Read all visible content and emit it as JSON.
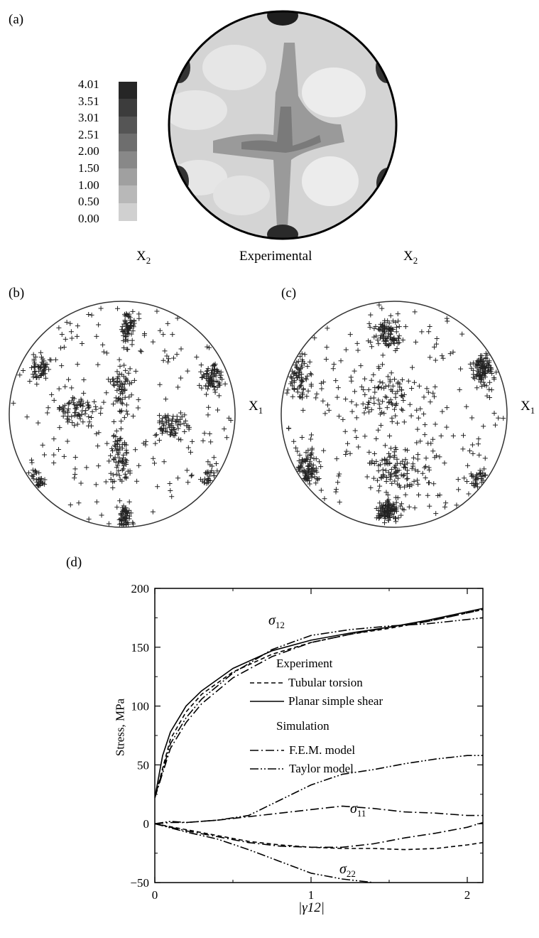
{
  "panels": {
    "a": {
      "label": "(a)",
      "scale_ticks": [
        "4.01",
        "3.51",
        "3.01",
        "2.51",
        "2.00",
        "1.50",
        "1.00",
        "0.50",
        "0.00"
      ],
      "scale_colors": [
        "#262626",
        "#3c3c3c",
        "#555555",
        "#6e6e6e",
        "#888888",
        "#a0a0a0",
        "#b8b8b8",
        "#d0d0d0",
        "#e8e8e8"
      ],
      "caption": "Experimental",
      "left_axis": "X",
      "right_axis": "X",
      "axis_sub": "2"
    },
    "b": {
      "label": "(b)",
      "axis": "X",
      "axis_sub": "1"
    },
    "c": {
      "label": "(c)",
      "axis": "X",
      "axis_sub": "1"
    },
    "d": {
      "label": "(d)"
    }
  },
  "chart_data": {
    "type": "line",
    "ylabel": "Stress, MPa",
    "xlabel": "|γ12|",
    "xlim": [
      0,
      2.1
    ],
    "ylim": [
      -50,
      200
    ],
    "x_ticks": [
      "0",
      "1",
      "2"
    ],
    "y_ticks": [
      "200",
      "150",
      "100",
      "50",
      "0",
      "−50"
    ],
    "legend": {
      "experiment_heading": "Experiment",
      "simulation_heading": "Simulation",
      "entries": [
        {
          "label": "Tubular torsion",
          "style": "dashed"
        },
        {
          "label": "Planar simple shear",
          "style": "solid"
        },
        {
          "label": "F.E.M. model",
          "style": "dashdot"
        },
        {
          "label": "Taylor model",
          "style": "dashdotdot"
        }
      ]
    },
    "annotations": [
      {
        "symbol": "σ",
        "sub": "12"
      },
      {
        "symbol": "σ",
        "sub": "11"
      },
      {
        "symbol": "σ",
        "sub": "22"
      }
    ],
    "series": [
      {
        "component": "σ12",
        "style": "solid",
        "x": [
          0,
          0.05,
          0.1,
          0.2,
          0.3,
          0.5,
          0.75,
          1.0,
          1.25,
          1.5,
          1.75,
          2.1
        ],
        "y": [
          22,
          58,
          78,
          100,
          113,
          132,
          147,
          156,
          162,
          167,
          173,
          183
        ]
      },
      {
        "component": "σ12",
        "style": "dashed",
        "x": [
          0,
          0.1,
          0.2,
          0.3,
          0.5,
          0.75,
          1.0,
          1.25,
          1.5,
          1.75,
          2.1
        ],
        "y": [
          22,
          72,
          95,
          110,
          129,
          144,
          154,
          161,
          166,
          172,
          182
        ]
      },
      {
        "component": "σ12",
        "style": "dashdot",
        "x": [
          0,
          0.1,
          0.2,
          0.3,
          0.5,
          0.75,
          1.0,
          1.25,
          1.5,
          1.75,
          2.1
        ],
        "y": [
          22,
          64,
          86,
          102,
          124,
          142,
          154,
          161,
          167,
          172,
          182
        ]
      },
      {
        "component": "σ12",
        "style": "dashdotdot",
        "x": [
          0,
          0.1,
          0.2,
          0.3,
          0.5,
          0.75,
          1.0,
          1.25,
          1.5,
          1.75,
          2.1
        ],
        "y": [
          22,
          68,
          90,
          106,
          128,
          148,
          160,
          165,
          168,
          170,
          175
        ]
      },
      {
        "component": "σ11",
        "style": "dashdot",
        "x": [
          0,
          0.1,
          0.2,
          0.4,
          0.6,
          0.8,
          1.0,
          1.2,
          1.4,
          1.6,
          1.8,
          2.0,
          2.1
        ],
        "y": [
          0,
          1,
          1,
          3,
          6,
          9,
          12,
          15,
          13,
          10,
          9,
          7,
          7
        ]
      },
      {
        "component": "σ11",
        "style": "dashdotdot",
        "x": [
          0,
          0.1,
          0.2,
          0.4,
          0.6,
          0.8,
          1.0,
          1.2,
          1.4,
          1.6,
          1.8,
          2.0,
          2.1
        ],
        "y": [
          0,
          2,
          1,
          3,
          7,
          20,
          33,
          42,
          46,
          51,
          55,
          58,
          58
        ]
      },
      {
        "component": "σ22",
        "style": "dashed",
        "x": [
          0,
          0.2,
          0.4,
          0.6,
          0.8,
          1.0,
          1.2,
          1.4,
          1.6,
          1.8,
          2.0,
          2.1
        ],
        "y": [
          0,
          -5,
          -10,
          -15,
          -18,
          -20,
          -21,
          -21,
          -22,
          -21,
          -18,
          -16
        ]
      },
      {
        "component": "σ22",
        "style": "dashdot",
        "x": [
          0,
          0.2,
          0.4,
          0.6,
          0.8,
          1.0,
          1.2,
          1.4,
          1.6,
          1.8,
          2.0,
          2.1
        ],
        "y": [
          0,
          -6,
          -11,
          -16,
          -19,
          -20,
          -20,
          -17,
          -12,
          -8,
          -3,
          1
        ]
      },
      {
        "component": "σ22",
        "style": "dashdotdot",
        "x": [
          0,
          0.2,
          0.4,
          0.6,
          0.8,
          1.0,
          1.2,
          1.4
        ],
        "y": [
          0,
          -7,
          -13,
          -22,
          -32,
          -42,
          -47,
          -50
        ]
      }
    ]
  }
}
